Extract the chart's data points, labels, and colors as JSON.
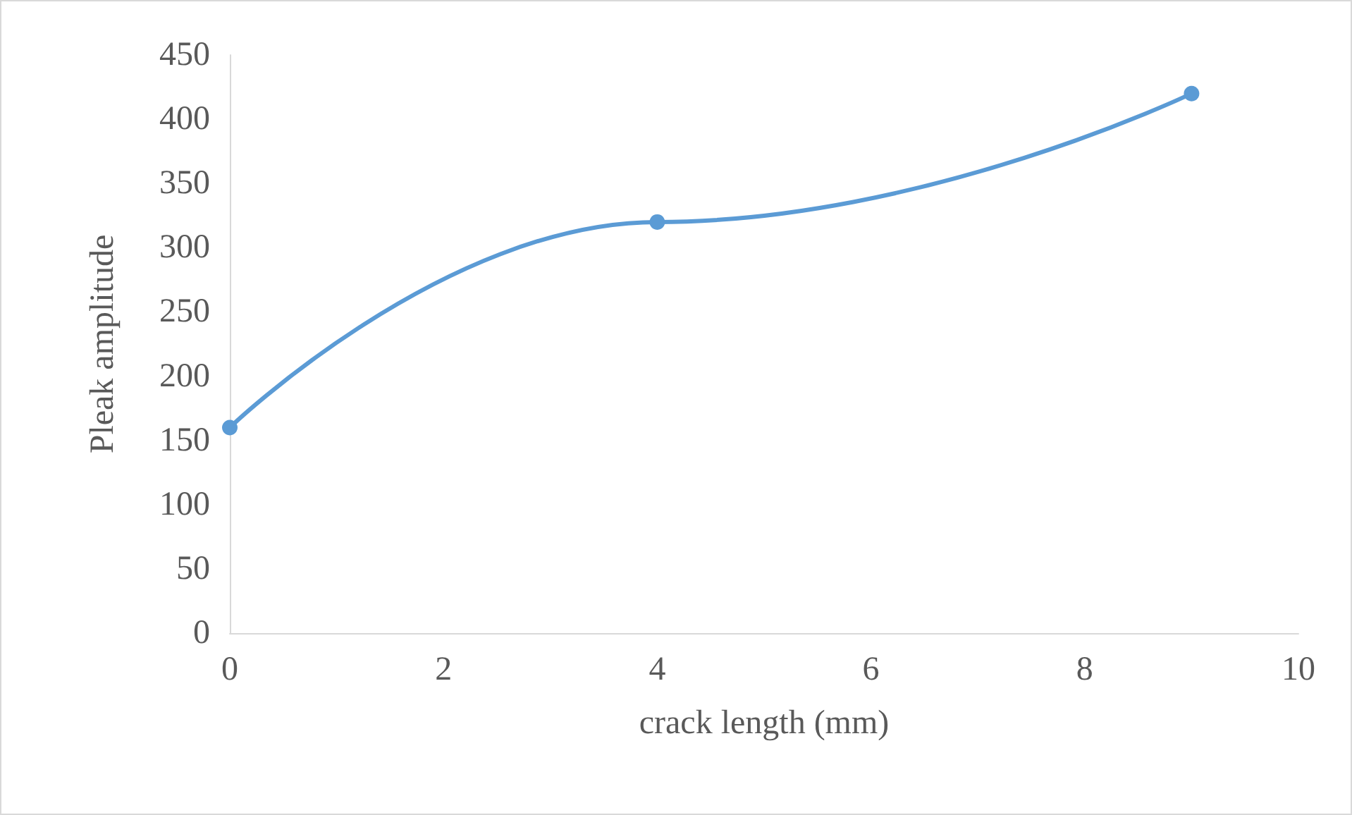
{
  "chart_data": {
    "type": "line",
    "xlabel": "crack length (mm)",
    "ylabel": "Pleak amplitude",
    "x": [
      0,
      4,
      9
    ],
    "series": [
      {
        "color": "#5b9bd5",
        "values": [
          160,
          320,
          420
        ]
      }
    ],
    "xlim": [
      0,
      10
    ],
    "xticks": [
      0,
      2,
      4,
      6,
      8,
      10
    ],
    "ylim": [
      0,
      450
    ],
    "yticks": [
      0,
      50,
      100,
      150,
      200,
      250,
      300,
      350,
      400,
      450
    ],
    "marker": "circle",
    "line_style": "solid"
  }
}
